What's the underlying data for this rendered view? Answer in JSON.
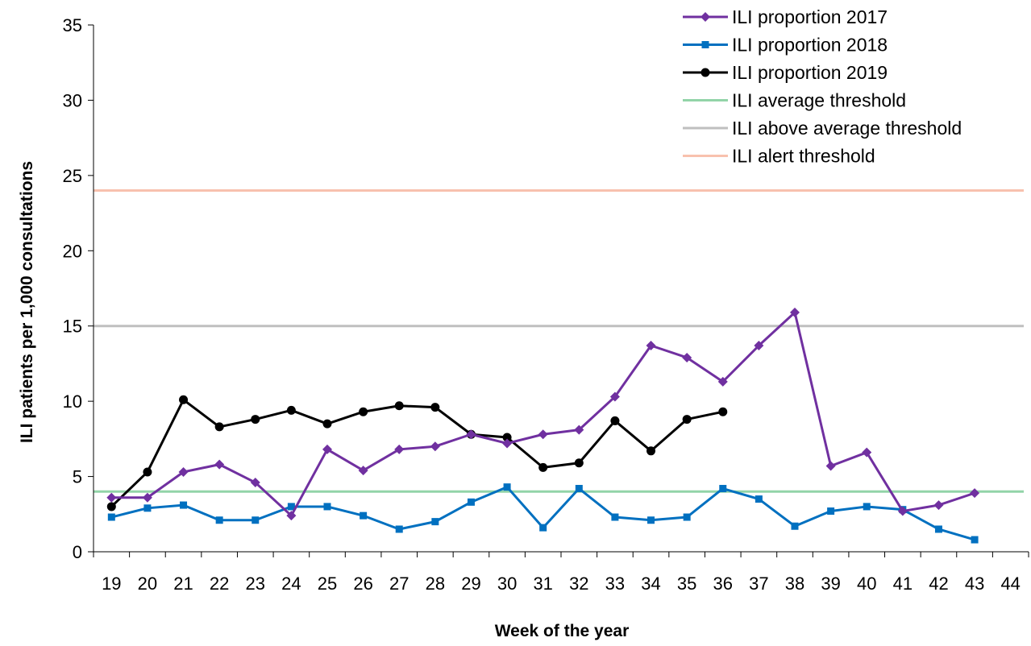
{
  "chart_data": {
    "type": "line",
    "xlabel": "Week of the year",
    "ylabel": "ILI patients per 1,000 consultations",
    "ylim": [
      0,
      35
    ],
    "yticks": [
      0,
      5,
      10,
      15,
      20,
      25,
      30,
      35
    ],
    "categories": [
      "19",
      "20",
      "21",
      "22",
      "23",
      "24",
      "25",
      "26",
      "27",
      "28",
      "29",
      "30",
      "31",
      "32",
      "33",
      "34",
      "35",
      "36",
      "37",
      "38",
      "39",
      "40",
      "41",
      "42",
      "43",
      "44"
    ],
    "grid": false,
    "legend_position": "top-right",
    "series": [
      {
        "name": "ILI proportion 2017",
        "color": "#7030a0",
        "marker": "diamond",
        "values": [
          3.6,
          3.6,
          5.3,
          5.8,
          4.6,
          2.4,
          6.8,
          5.4,
          6.8,
          7.0,
          7.8,
          7.2,
          7.8,
          8.1,
          10.3,
          13.7,
          12.9,
          11.3,
          13.7,
          15.9,
          5.7,
          6.6,
          2.7,
          3.1,
          3.9,
          null
        ]
      },
      {
        "name": "ILI proportion 2018",
        "color": "#0070c0",
        "marker": "square",
        "values": [
          2.3,
          2.9,
          3.1,
          2.1,
          2.1,
          3.0,
          3.0,
          2.4,
          1.5,
          2.0,
          3.3,
          4.3,
          1.6,
          4.2,
          2.3,
          2.1,
          2.3,
          4.2,
          3.5,
          1.7,
          2.7,
          3.0,
          2.8,
          1.5,
          0.8,
          null
        ]
      },
      {
        "name": "ILI proportion 2019",
        "color": "#000000",
        "marker": "circle",
        "values": [
          3.0,
          5.3,
          10.1,
          8.3,
          8.8,
          9.4,
          8.5,
          9.3,
          9.7,
          9.6,
          7.8,
          7.6,
          5.6,
          5.9,
          8.7,
          6.7,
          8.8,
          9.3,
          null,
          null,
          null,
          null,
          null,
          null,
          null,
          null
        ]
      },
      {
        "name": "ILI average threshold",
        "color": "#92d4a8",
        "marker": "none",
        "threshold": 4
      },
      {
        "name": "ILI above average threshold",
        "color": "#bfbfbf",
        "marker": "none",
        "threshold": 15
      },
      {
        "name": "ILI alert threshold",
        "color": "#f8c1ae",
        "marker": "none",
        "threshold": 24
      }
    ]
  }
}
